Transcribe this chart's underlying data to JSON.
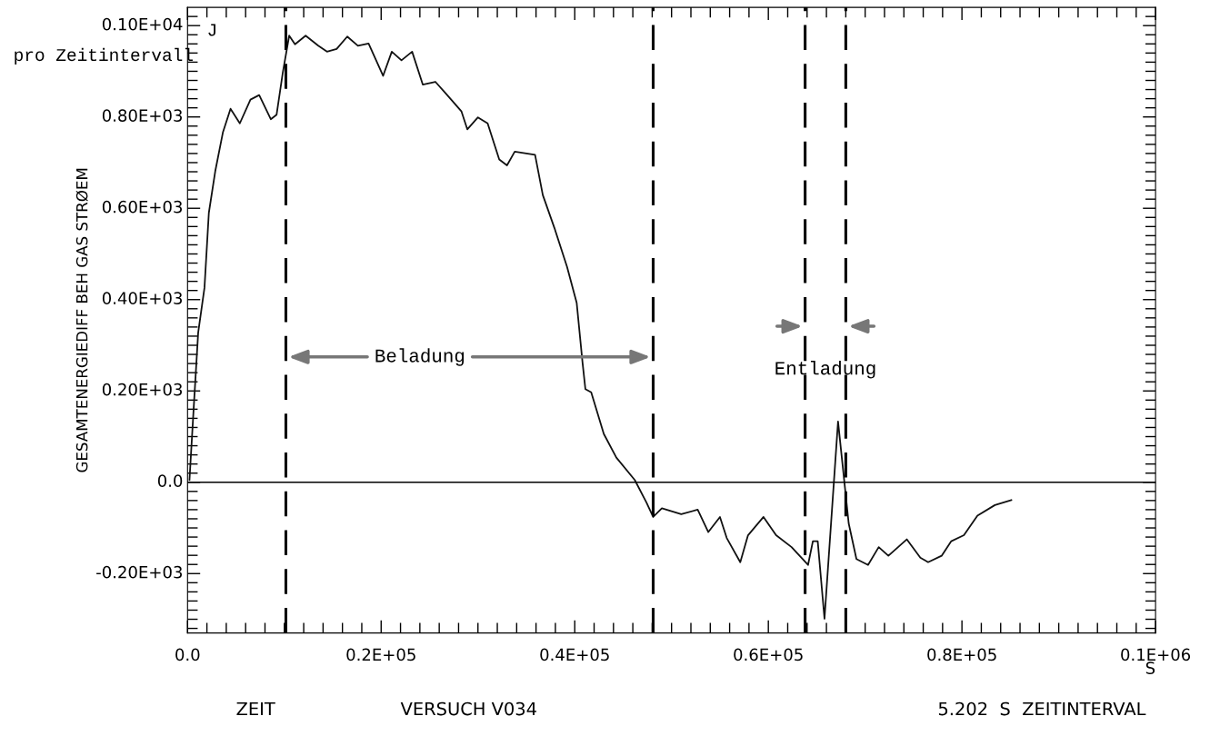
{
  "chart_data": {
    "type": "line",
    "ylabel": "GESAMTENERGIEDIFF BEH GAS STRØEM",
    "xlabel": "S",
    "annotations": [
      "J",
      "pro Zeitintervall",
      "ZEIT",
      "VERSUCH V034",
      "5.202  S  ZEITINTERVAL",
      "Beladung",
      "Entladung"
    ],
    "xlim": [
      0,
      100000
    ],
    "ylim": [
      -330,
      1040
    ],
    "xticks": [
      {
        "value": 0,
        "label": "0.0"
      },
      {
        "value": 20000,
        "label": "0.2E+05"
      },
      {
        "value": 40000,
        "label": "0.4E+05"
      },
      {
        "value": 60000,
        "label": "0.6E+05"
      },
      {
        "value": 80000,
        "label": "0.8E+05"
      },
      {
        "value": 100000,
        "label": "0.1E+06"
      }
    ],
    "yticks": [
      {
        "value": -200,
        "label": "-0.20E+03"
      },
      {
        "value": 0,
        "label": "0.0"
      },
      {
        "value": 200,
        "label": "0.20E+03"
      },
      {
        "value": 400,
        "label": "0.40E+03"
      },
      {
        "value": 600,
        "label": "0.60E+03"
      },
      {
        "value": 800,
        "label": "0.80E+03"
      },
      {
        "value": 1000,
        "label": "0.10E+04"
      }
    ],
    "grid": false,
    "marker": "none",
    "line_style": "solid",
    "ref_lines": [
      {
        "axis": "y",
        "value": 0,
        "line_style": "solid",
        "color": "#000000"
      },
      {
        "axis": "x",
        "value": 10160,
        "line_style": "dashed",
        "color": "#000000"
      },
      {
        "axis": "x",
        "value": 48100,
        "line_style": "dashed",
        "color": "#000000"
      },
      {
        "axis": "x",
        "value": 63800,
        "line_style": "dashed",
        "color": "#000000"
      },
      {
        "axis": "x",
        "value": 68000,
        "line_style": "dashed",
        "color": "#000000"
      }
    ],
    "series": [
      {
        "color": "#111111",
        "x": [
          200,
          600,
          1100,
          1750,
          2200,
          2860,
          3650,
          4440,
          5400,
          6500,
          7400,
          8600,
          9200,
          9840,
          10500,
          11100,
          12200,
          13500,
          14400,
          15400,
          16500,
          17600,
          18700,
          20200,
          21100,
          22100,
          23200,
          24300,
          25600,
          26700,
          28300,
          28900,
          30000,
          31000,
          32200,
          33000,
          33800,
          35900,
          36700,
          37900,
          39200,
          40200,
          40800,
          41100,
          41700,
          43000,
          44300,
          46200,
          47400,
          48100,
          49000,
          51000,
          52700,
          53800,
          55000,
          55700,
          57100,
          57900,
          59500,
          60800,
          62400,
          64100,
          64600,
          65100,
          65800,
          67200,
          68300,
          69100,
          70300,
          71400,
          72400,
          74300,
          75700,
          76500,
          77900,
          78900,
          80200,
          81600,
          83400,
          85100
        ],
        "values": [
          5,
          150,
          328,
          426,
          590,
          681,
          766,
          818,
          786,
          838,
          848,
          795,
          805,
          897,
          978,
          959,
          978,
          956,
          943,
          949,
          976,
          956,
          961,
          890,
          943,
          924,
          943,
          871,
          877,
          851,
          812,
          773,
          799,
          786,
          707,
          694,
          724,
          717,
          629,
          557,
          472,
          393,
          263,
          204,
          197,
          106,
          54,
          5,
          -44,
          -76,
          -57,
          -70,
          -60,
          -109,
          -76,
          -122,
          -175,
          -116,
          -76,
          -116,
          -142,
          -181,
          -129,
          -129,
          -299,
          133,
          -90,
          -168,
          -181,
          -142,
          -161,
          -125,
          -165,
          -175,
          -161,
          -129,
          -116,
          -73,
          -50,
          -39
        ]
      }
    ]
  }
}
